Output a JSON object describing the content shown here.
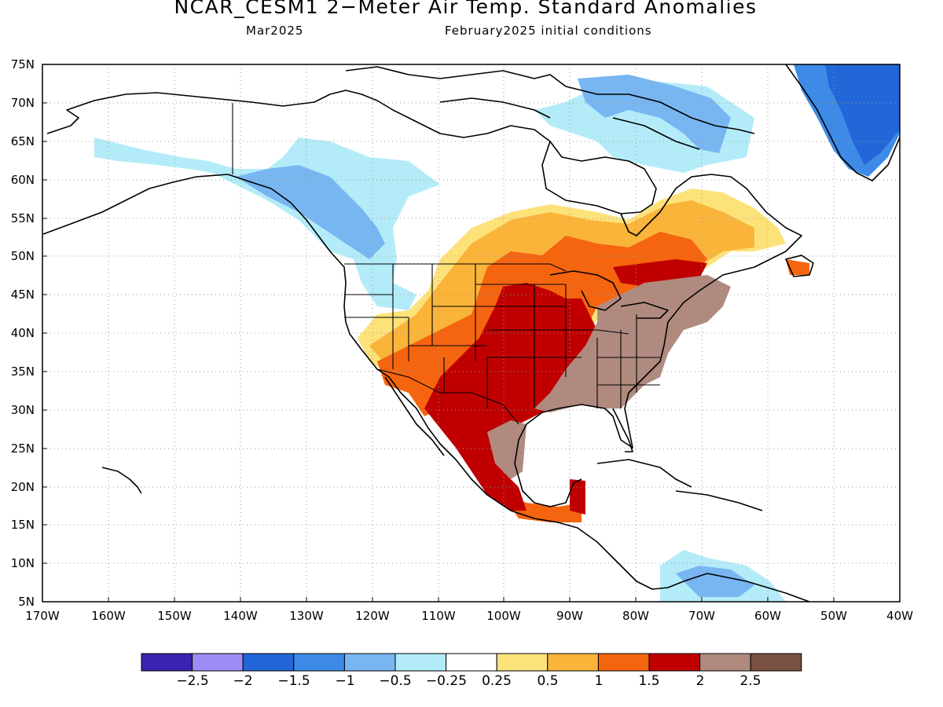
{
  "header": {
    "title": "NCAR_CESM1 2−Meter Air Temp. Standard Anomalies",
    "valid_month": "Mar2025",
    "initial_conditions": "February2025 initial conditions"
  },
  "axes": {
    "lat_labels": [
      "75N",
      "70N",
      "65N",
      "60N",
      "55N",
      "50N",
      "45N",
      "40N",
      "35N",
      "30N",
      "25N",
      "20N",
      "15N",
      "10N",
      "5N"
    ],
    "lon_labels": [
      "170W",
      "160W",
      "150W",
      "140W",
      "130W",
      "120W",
      "110W",
      "100W",
      "90W",
      "80W",
      "70W",
      "60W",
      "50W",
      "40W"
    ]
  },
  "legend": {
    "colors": [
      "#3b22b0",
      "#a08cf7",
      "#2366d8",
      "#3d8be6",
      "#78b6f2",
      "#b3ecf8",
      "#ffffff",
      "#fde27a",
      "#fab43a",
      "#f5640f",
      "#c00000",
      "#b08a7f",
      "#7a5042"
    ],
    "labels": [
      "−2.5",
      "−2",
      "−1.5",
      "−1",
      "−0.5",
      "−0.25",
      "0.25",
      "0.5",
      "1",
      "1.5",
      "2",
      "2.5"
    ]
  },
  "chart_data": {
    "type": "heatmap",
    "title": "NCAR_CESM1 2−Meter Air Temp. Standard Anomalies",
    "subtitle": "Mar2025   February2025 initial conditions",
    "xlim": [
      -170,
      -40
    ],
    "ylim": [
      5,
      75
    ],
    "grid": true,
    "colorbar_bounds": [
      -2.5,
      -2,
      -1.5,
      -1,
      -0.5,
      -0.25,
      0.25,
      0.5,
      1,
      1.5,
      2,
      2.5
    ],
    "regions": [
      {
        "area": "Alaska and western Canada",
        "anomaly_range": [
          -1,
          -0.25
        ]
      },
      {
        "area": "Canadian Arctic islands",
        "anomaly_range": [
          -1.5,
          -0.5
        ]
      },
      {
        "area": "Greenland",
        "anomaly_range": [
          -2,
          -1
        ]
      },
      {
        "area": "Central and southern Plains, Texas, Mexico",
        "anomaly_range": [
          1.5,
          2.5
        ]
      },
      {
        "area": "Eastern United States",
        "anomaly_range": [
          2,
          2.5
        ]
      },
      {
        "area": "Ontario and Quebec",
        "anomaly_range": [
          0.25,
          2
        ]
      },
      {
        "area": "Northern South America coast",
        "anomaly_range": [
          -1.5,
          -0.25
        ]
      }
    ]
  }
}
